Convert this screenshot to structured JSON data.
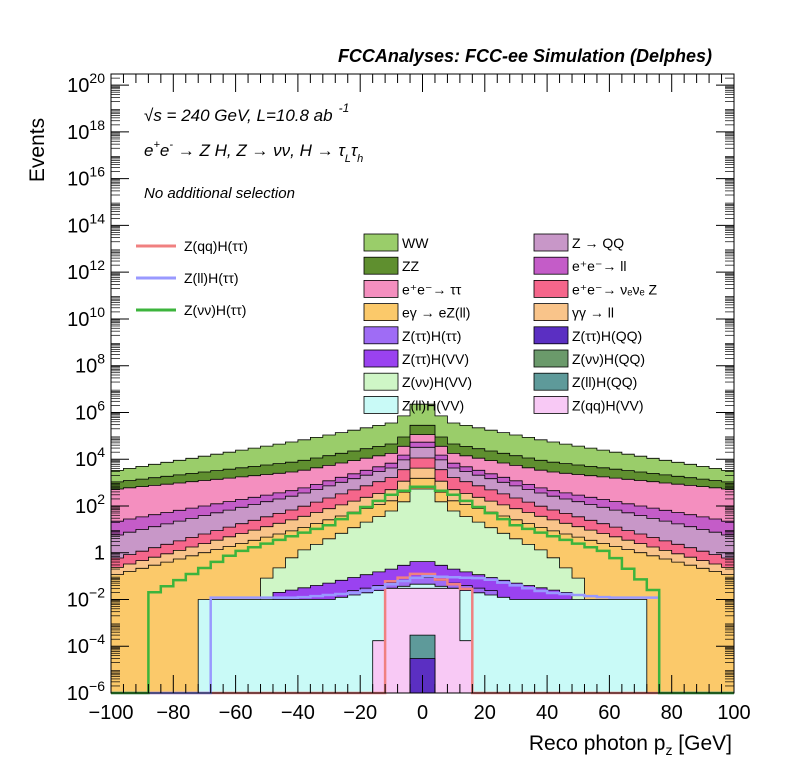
{
  "header": {
    "title": "FCCAnalyses: FCC-ee Simulation (Delphes)"
  },
  "annotations": {
    "energy": "√s = 240 GeV, L=10.8 ab",
    "lumi_exp": "-1",
    "process": "e⁺e⁻ → Z H, Z → νν, H → τ_L τ_h",
    "selection": "No additional selection"
  },
  "chart_data": {
    "type": "histogram",
    "title": "FCCAnalyses: FCC-ee Simulation (Delphes)",
    "xlabel": "Reco photon p_z [GeV]",
    "ylabel": "Events",
    "xlim": [
      -100,
      100
    ],
    "ylim": [
      1e-06,
      3e+20
    ],
    "yscale": "log",
    "xticks": [
      -100,
      -80,
      -60,
      -40,
      -20,
      0,
      20,
      40,
      60,
      80,
      100
    ],
    "yticks": [
      {
        "v": 1e-06,
        "m": "10",
        "e": "−6"
      },
      {
        "v": 0.0001,
        "m": "10",
        "e": "−4"
      },
      {
        "v": 0.01,
        "m": "10",
        "e": "−2"
      },
      {
        "v": 1,
        "m": "1",
        "e": ""
      },
      {
        "v": 100.0,
        "m": "10",
        "e": "2"
      },
      {
        "v": 10000.0,
        "m": "10",
        "e": "4"
      },
      {
        "v": 1000000.0,
        "m": "10",
        "e": "6"
      },
      {
        "v": 100000000.0,
        "m": "10",
        "e": "8"
      },
      {
        "v": 10000000000.0,
        "m": "10",
        "e": "10"
      },
      {
        "v": 1000000000000.0,
        "m": "10",
        "e": "12"
      },
      {
        "v": 100000000000000.0,
        "m": "10",
        "e": "14"
      },
      {
        "v": 1e+16,
        "m": "10",
        "e": "16"
      },
      {
        "v": 1e+18,
        "m": "10",
        "e": "18"
      },
      {
        "v": 1e+20,
        "m": "10",
        "e": "20"
      }
    ],
    "bins": {
      "min": -100,
      "max": 100,
      "n": 50
    },
    "stack_layers": [
      {
        "name": "WW",
        "color": "#9ACD6A",
        "top_center": 4000000.0,
        "top_edge": 3000.0,
        "ctrl_x": [
          0,
          8,
          40,
          100
        ],
        "ctrl_y": [
          4000000.0,
          400000.0,
          60000.0,
          3000.0
        ]
      },
      {
        "name": "ZZ",
        "color": "#5F8F2F",
        "top_center": 500000.0,
        "top_edge": 1000.0,
        "ctrl_x": [
          0,
          8,
          40,
          100
        ],
        "ctrl_y": [
          500000.0,
          50000.0,
          8000.0,
          1000.0
        ]
      },
      {
        "name": "e⁺e⁻→ ττ",
        "color": "#F48FBF",
        "top_center": 200000.0,
        "top_edge": 500.0,
        "ctrl_x": [
          0,
          8,
          40,
          100
        ],
        "ctrl_y": [
          200000.0,
          20000.0,
          3000.0,
          500.0
        ]
      },
      {
        "name": "e⁺e⁻→ ll",
        "color": "#C45CC8",
        "top_center": 100000.0,
        "top_edge": 20,
        "ctrl_x": [
          0,
          8,
          40,
          100
        ],
        "ctrl_y": [
          100000.0,
          8000.0,
          500,
          20
        ]
      },
      {
        "name": "Z → QQ",
        "color": "#C897C8",
        "top_center": 60000.0,
        "top_edge": 5,
        "ctrl_x": [
          0,
          8,
          40,
          100
        ],
        "ctrl_y": [
          60000.0,
          5000.0,
          300,
          5
        ]
      },
      {
        "name": "e⁺e⁻→ νₑνₑ Z",
        "color": "#F5668B",
        "top_center": 20000.0,
        "top_edge": 0.5,
        "ctrl_x": [
          0,
          8,
          40,
          100
        ],
        "ctrl_y": [
          20000.0,
          2000.0,
          80,
          0.5
        ]
      },
      {
        "name": "γγ → ll",
        "color": "#F9C48A",
        "top_center": 8000.0,
        "top_edge": 0.2,
        "ctrl_x": [
          0,
          8,
          40,
          100
        ],
        "ctrl_y": [
          8000.0,
          600,
          30,
          0.2
        ]
      },
      {
        "name": "eγ → eZ(ll)",
        "color": "#FBC96A",
        "top_center": 3000.0,
        "top_edge": 0.1,
        "ctrl_x": [
          0,
          8,
          40,
          100
        ],
        "ctrl_y": [
          3000.0,
          200,
          10,
          0.1
        ]
      },
      {
        "name": "Z(νν)H(VV)",
        "color": "#CFF6C6",
        "top_center": 1000.0,
        "top_edge": 1e-06,
        "ctrl_x": [
          0,
          8,
          40,
          52,
          60
        ],
        "ctrl_y": [
          1000.0,
          80,
          1,
          0.05,
          1e-06
        ]
      },
      {
        "name": "Z(ττ)H(VV)",
        "color": "#9A42F0",
        "top_center": 0.5,
        "top_edge": 1e-06,
        "ctrl_x": [
          0,
          10,
          30,
          46,
          50
        ],
        "ctrl_y": [
          0.5,
          0.2,
          0.05,
          0.02,
          1e-06
        ]
      },
      {
        "name": "Z(ττ)H(ττ)",
        "color": "#9F6CF5",
        "top_center": 0.1,
        "top_edge": 1e-06,
        "ctrl_x": [
          0,
          10,
          25,
          30
        ],
        "ctrl_y": [
          0.1,
          0.05,
          0.02,
          1e-06
        ]
      },
      {
        "name": "Z(ll)H(VV)",
        "color": "#C9FAF7",
        "top_center": 0.05,
        "top_edge": 1e-06,
        "ctrl_x": [
          0,
          10,
          30,
          70,
          72
        ],
        "ctrl_y": [
          0.05,
          0.03,
          0.01,
          0.01,
          1e-06
        ]
      },
      {
        "name": "Z(qq)H(VV)",
        "color": "#F8C9F5",
        "top_center": 0.03,
        "top_edge": 1e-06,
        "ctrl_x": [
          0,
          8,
          12,
          16
        ],
        "ctrl_y": [
          0.03,
          0.03,
          0.03,
          1e-06
        ]
      },
      {
        "name": "Z(ll)H(QQ)",
        "color": "#5E9A9A",
        "top_center": 0.0003,
        "top_edge": 1e-06,
        "ctrl_x": [
          0,
          4,
          6
        ],
        "ctrl_y": [
          0.0003,
          0.0003,
          1e-06
        ]
      },
      {
        "name": "Z(ττ)H(QQ)",
        "color": "#5B2FC2",
        "top_center": 3e-05,
        "top_edge": 1e-06,
        "ctrl_x": [
          0,
          4,
          6
        ],
        "ctrl_y": [
          3e-05,
          3e-05,
          1e-06
        ]
      }
    ],
    "signal_lines": [
      {
        "name": "Z(qq)H(ττ)",
        "color": "#F08080",
        "ctrl_x": [
          -12,
          -10,
          0,
          4,
          8,
          12,
          16,
          18
        ],
        "ctrl_y": [
          1e-06,
          0.06,
          0.15,
          0.1,
          0.05,
          0.04,
          0.02,
          1e-06
        ]
      },
      {
        "name": "Z(ll)H(ττ)",
        "color": "#9999FF",
        "ctrl_x": [
          -68,
          -66,
          -40,
          -20,
          0,
          20,
          40,
          60,
          74,
          76
        ],
        "ctrl_y": [
          1e-06,
          0.012,
          0.012,
          0.02,
          0.1,
          0.08,
          0.02,
          0.012,
          0.012,
          1e-06
        ]
      },
      {
        "name": "Z(νν)H(ττ)",
        "color": "#3CB43C",
        "ctrl_x": [
          -90,
          -88,
          -60,
          -30,
          -10,
          0,
          10,
          30,
          60,
          76,
          78
        ],
        "ctrl_y": [
          1e-06,
          0.015,
          1,
          15,
          300,
          800,
          300,
          15,
          1,
          0.015,
          1e-06
        ]
      }
    ],
    "legend": {
      "placement": "top",
      "col1": [
        "Z(qq)H(ττ)",
        "Z(ll)H(ττ)",
        "Z(νν)H(ττ)"
      ],
      "col2": [
        "WW",
        "ZZ",
        "e⁺e⁻→ ττ",
        "eγ → eZ(ll)",
        "Z(ττ)H(ττ)",
        "Z(ττ)H(VV)",
        "Z(νν)H(VV)",
        "Z(ll)H(VV)"
      ],
      "col3": [
        "Z → QQ",
        "e⁺e⁻→ ll",
        "e⁺e⁻→ νₑνₑ Z",
        "γγ → ll",
        "Z(ττ)H(QQ)",
        "Z(νν)H(QQ)",
        "Z(ll)H(QQ)",
        "Z(qq)H(VV)"
      ],
      "colors": {
        "WW": "#9ACD6A",
        "ZZ": "#5F8F2F",
        "e⁺e⁻→ ττ": "#F48FBF",
        "eγ → eZ(ll)": "#FBC96A",
        "Z(ττ)H(ττ)": "#9F6CF5",
        "Z(ττ)H(VV)": "#9A42F0",
        "Z(νν)H(VV)": "#CFF6C6",
        "Z(ll)H(VV)": "#C9FAF7",
        "Z → QQ": "#C897C8",
        "e⁺e⁻→ ll": "#C45CC8",
        "e⁺e⁻→ νₑνₑ Z": "#F5668B",
        "γγ → ll": "#F9C48A",
        "Z(ττ)H(QQ)": "#5B2FC2",
        "Z(νν)H(QQ)": "#6B9A6B",
        "Z(ll)H(QQ)": "#5E9A9A",
        "Z(qq)H(VV)": "#F8C9F5",
        "Z(qq)H(ττ)": "#F08080",
        "Z(ll)H(ττ)": "#9999FF",
        "Z(νν)H(ττ)": "#3CB43C"
      }
    }
  }
}
